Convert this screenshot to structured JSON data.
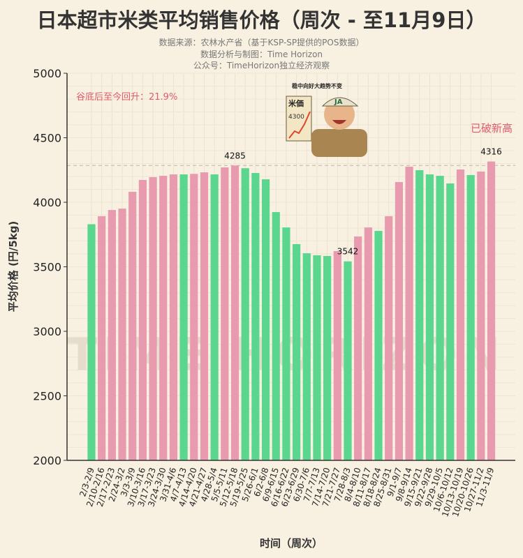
{
  "chart_data": {
    "type": "bar",
    "title": "日本超市米类平均销售价格（周次 - 至11月9日）",
    "subtitle": [
      "数据来源：农林水产省（基于KSP-SP提供的POS数据）",
      "数据分析与制图：Time Horizon",
      "公众号：TimeHorizon独立经济观察"
    ],
    "xlabel": "时间（周次）",
    "ylabel": "平均价格 (円/5kg)",
    "ylim": [
      2000,
      5000
    ],
    "yticks": [
      2000,
      2500,
      3000,
      3500,
      4000,
      4500,
      5000
    ],
    "grid": true,
    "categories": [
      "2/3-2/9",
      "2/10-2/16",
      "2/17-2/23",
      "2/24-3/2",
      "3/3-3/9",
      "3/10-3/16",
      "3/17-3/23",
      "3/24-3/30",
      "3/31-4/6",
      "4/7-4/13",
      "4/14-4/20",
      "4/21-4/27",
      "4/28-5/4",
      "5/5-5/11",
      "5/12-5/18",
      "5/19-5/25",
      "5/26-6/1",
      "6/2-6/8",
      "6/9-6/15",
      "6/16-6/22",
      "6/23-6/29",
      "6/30-7/6",
      "7/7-7/13",
      "7/14-7/20",
      "7/21-7/27",
      "7/28-8/3",
      "8/4-8/10",
      "8/11-8/17",
      "8/18-8/24",
      "8/25-8/31",
      "9/1-9/7",
      "9/8-9/14",
      "9/15-9/21",
      "9/22-9/28",
      "9/29-10/5",
      "10/6-10/12",
      "10/13-10/19",
      "10/20-10/26",
      "10/27-11/2",
      "11/3-11/9"
    ],
    "values": [
      3830,
      3892,
      3940,
      3951,
      4081,
      4173,
      4195,
      4205,
      4216,
      4216,
      4220,
      4232,
      4216,
      4270,
      4285,
      4264,
      4227,
      4178,
      3924,
      3805,
      3676,
      3605,
      3589,
      3584,
      3622,
      3542,
      3735,
      3805,
      3778,
      3892,
      4157,
      4276,
      4249,
      4216,
      4205,
      4146,
      4254,
      4211,
      4238,
      4316
    ],
    "colors": {
      "up": "#e89aae",
      "down": "#5ad68e",
      "annotation": "#e05a6a",
      "reference_line": "#c8c0b0"
    },
    "data_labels": [
      {
        "index": 14,
        "text": "4285"
      },
      {
        "index": 25,
        "text": "3542"
      },
      {
        "index": 39,
        "text": "4316"
      }
    ],
    "reference_line": 4285,
    "annotations": {
      "rebound": "谷底后至今回升：21.9%",
      "new_high": "已破新高"
    },
    "watermark": "TIME HORIZON",
    "illustration": {
      "caption": "稳中向好大趋势不变",
      "sign_title": "米価",
      "sign_value": "4300",
      "cap_text": "JA"
    }
  }
}
